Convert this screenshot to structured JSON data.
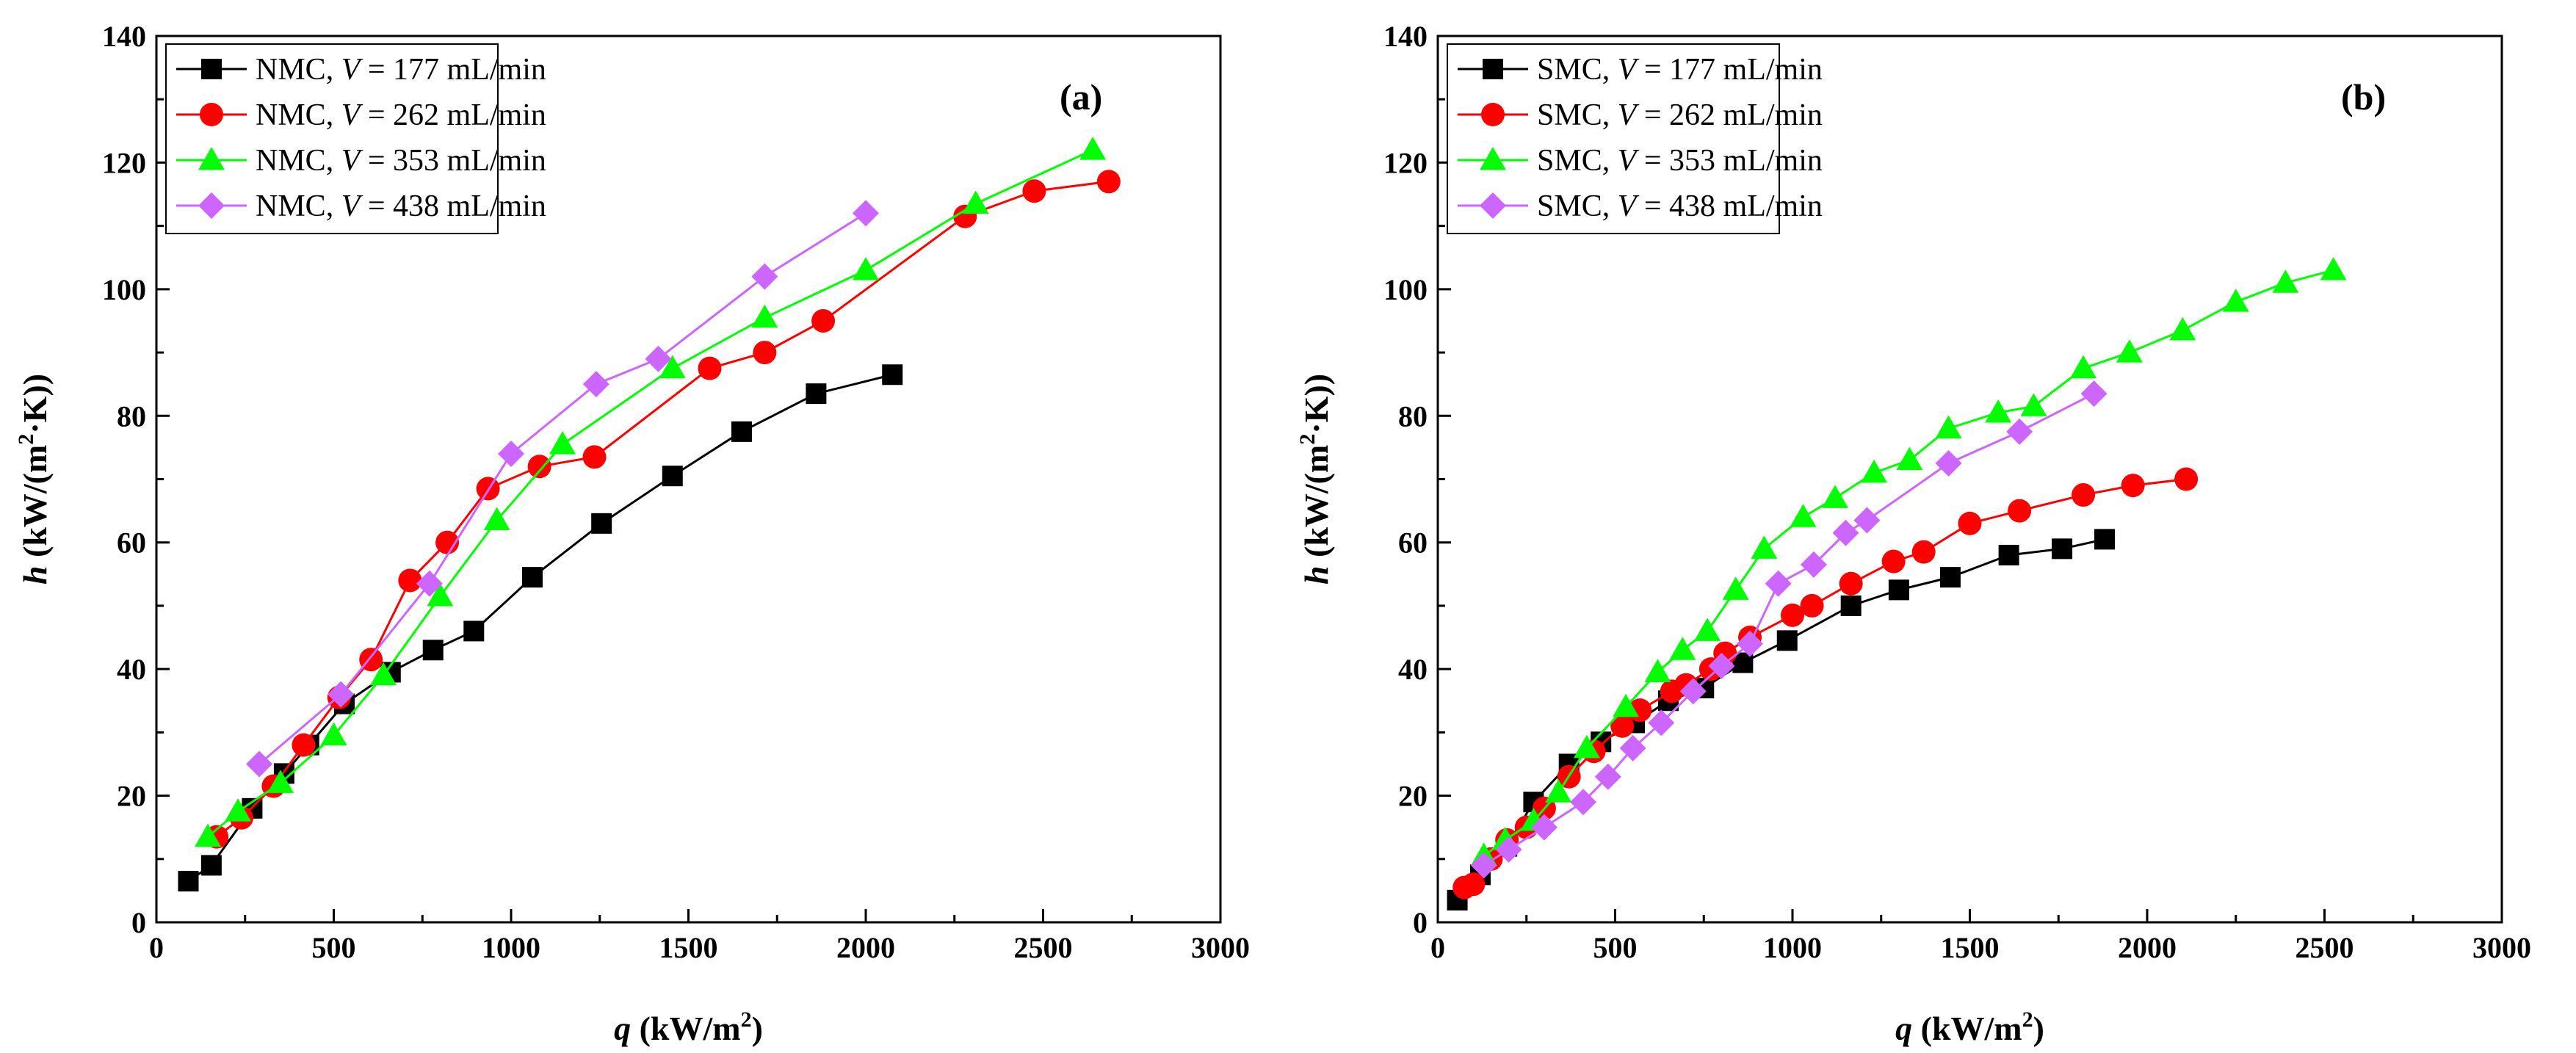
{
  "chart_data": [
    {
      "type": "line",
      "panel_label": "(a)",
      "xlabel": "q (kW/m2)",
      "xlabel_var": "q",
      "xlabel_unit_pre": " (kW/m",
      "xlabel_unit_sup": "2",
      "xlabel_unit_post": ")",
      "ylabel": "h (kW/(m2·K))",
      "ylabel_var": "h",
      "ylabel_unit_pre": " (kW/(m",
      "ylabel_unit_sup": "2",
      "ylabel_unit_post": "·K))",
      "xlim": [
        0,
        3000
      ],
      "ylim": [
        0,
        140
      ],
      "xticks": [
        0,
        500,
        1000,
        1500,
        2000,
        2500,
        3000
      ],
      "yticks": [
        0,
        20,
        40,
        60,
        80,
        100,
        120,
        140
      ],
      "grid": false,
      "legend_position": "top-left",
      "series": [
        {
          "name": "NMC, V = 177 mL/min",
          "legend_prefix": "NMC, ",
          "legend_var": "V",
          "legend_suffix": " = 177 mL/min",
          "color": "#000000",
          "marker": "square",
          "x": [
            90,
            155,
            270,
            360,
            430,
            530,
            660,
            780,
            895,
            1060,
            1255,
            1455,
            1650,
            1860,
            2075
          ],
          "y": [
            6.5,
            9,
            18,
            23.5,
            28,
            34.5,
            39.5,
            43,
            46,
            54.5,
            63,
            70.5,
            77.5,
            83.5,
            86.5
          ]
        },
        {
          "name": "NMC, V = 262 mL/min",
          "legend_prefix": "NMC, ",
          "legend_var": "V",
          "legend_suffix": " = 262 mL/min",
          "color": "#ff0000",
          "marker": "circle",
          "x": [
            170,
            240,
            330,
            415,
            515,
            605,
            715,
            820,
            935,
            1080,
            1235,
            1560,
            1715,
            1880,
            2280,
            2475,
            2685
          ],
          "y": [
            13.5,
            16.5,
            21.5,
            28,
            35.5,
            41.5,
            54,
            60,
            68.5,
            72,
            73.5,
            87.5,
            90,
            95,
            111.5,
            115.5,
            117
          ]
        },
        {
          "name": "NMC, V = 353 mL/min",
          "legend_prefix": "NMC, ",
          "legend_var": "V",
          "legend_suffix": " = 353 mL/min",
          "color": "#00ff00",
          "marker": "triangle",
          "x": [
            145,
            230,
            350,
            500,
            640,
            800,
            960,
            1145,
            1455,
            1715,
            2000,
            2310,
            2640
          ],
          "y": [
            13.5,
            17.5,
            22,
            29.5,
            39,
            51.5,
            63.5,
            75.5,
            87.5,
            95.5,
            103,
            113.5,
            122
          ]
        },
        {
          "name": "NMC, V = 438 mL/min",
          "legend_prefix": "NMC, ",
          "legend_var": "V",
          "legend_suffix": " = 438 mL/min",
          "color": "#cc66ff",
          "marker": "diamond",
          "x": [
            290,
            520,
            770,
            1000,
            1240,
            1415,
            1715,
            2000
          ],
          "y": [
            25,
            36,
            53.5,
            74,
            85,
            89,
            102,
            112
          ]
        }
      ]
    },
    {
      "type": "line",
      "panel_label": "(b)",
      "xlabel": "q (kW/m2)",
      "xlabel_var": "q",
      "xlabel_unit_pre": " (kW/m",
      "xlabel_unit_sup": "2",
      "xlabel_unit_post": ")",
      "ylabel": "h (kW/(m2·K))",
      "ylabel_var": "h",
      "ylabel_unit_pre": " (kW/(m",
      "ylabel_unit_sup": "2",
      "ylabel_unit_post": "·K))",
      "xlim": [
        0,
        3000
      ],
      "ylim": [
        0,
        140
      ],
      "xticks": [
        0,
        500,
        1000,
        1500,
        2000,
        2500,
        3000
      ],
      "yticks": [
        0,
        20,
        40,
        60,
        80,
        100,
        120,
        140
      ],
      "grid": false,
      "legend_position": "top-left",
      "series": [
        {
          "name": "SMC, V = 177 mL/min",
          "legend_prefix": "SMC, ",
          "legend_var": "V",
          "legend_suffix": " = 177 mL/min",
          "color": "#000000",
          "marker": "square",
          "x": [
            55,
            120,
            195,
            270,
            370,
            460,
            555,
            650,
            750,
            860,
            985,
            1165,
            1300,
            1445,
            1610,
            1760,
            1880
          ],
          "y": [
            3.5,
            7.5,
            12,
            19,
            25,
            28.5,
            31.5,
            35,
            37,
            41,
            44.5,
            50,
            52.5,
            54.5,
            58,
            59,
            60.5
          ]
        },
        {
          "name": "SMC, V = 262 mL/min",
          "legend_prefix": "SMC, ",
          "legend_var": "V",
          "legend_suffix": " = 262 mL/min",
          "color": "#ff0000",
          "marker": "circle",
          "x": [
            75,
            100,
            150,
            195,
            250,
            300,
            370,
            440,
            520,
            570,
            660,
            700,
            770,
            810,
            880,
            1000,
            1055,
            1165,
            1285,
            1370,
            1500,
            1640,
            1820,
            1960,
            2110
          ],
          "y": [
            5.5,
            6,
            10,
            13,
            15,
            18,
            23,
            27,
            31,
            33.5,
            36.5,
            37.5,
            40,
            42.5,
            45,
            48.5,
            50,
            53.5,
            57,
            58.5,
            63,
            65,
            67.5,
            69,
            70
          ]
        },
        {
          "name": "SMC, V = 353 mL/min",
          "legend_prefix": "SMC, ",
          "legend_var": "V",
          "legend_suffix": " = 353 mL/min",
          "color": "#00ff00",
          "marker": "triangle",
          "x": [
            130,
            190,
            270,
            340,
            420,
            530,
            620,
            690,
            760,
            840,
            920,
            1030,
            1120,
            1230,
            1330,
            1440,
            1580,
            1680,
            1820,
            1950,
            2100,
            2250,
            2390,
            2525
          ],
          "y": [
            10.5,
            13,
            16,
            20.5,
            27.5,
            34,
            39.5,
            43,
            46,
            52.5,
            59,
            64,
            67,
            71,
            73,
            78,
            80.5,
            81.5,
            87.5,
            90,
            93.5,
            98,
            101,
            103
          ]
        },
        {
          "name": "SMC, V = 438 mL/min",
          "legend_prefix": "SMC, ",
          "legend_var": "V",
          "legend_suffix": " = 438 mL/min",
          "color": "#cc66ff",
          "marker": "diamond",
          "x": [
            130,
            200,
            300,
            410,
            480,
            550,
            630,
            720,
            800,
            880,
            960,
            1060,
            1150,
            1210,
            1440,
            1640,
            1850
          ],
          "y": [
            9,
            11.5,
            15,
            19,
            23,
            27.5,
            31.5,
            36.5,
            40.5,
            44,
            53.5,
            56.5,
            61.5,
            63.5,
            72.5,
            77.5,
            83.5
          ]
        }
      ]
    }
  ]
}
